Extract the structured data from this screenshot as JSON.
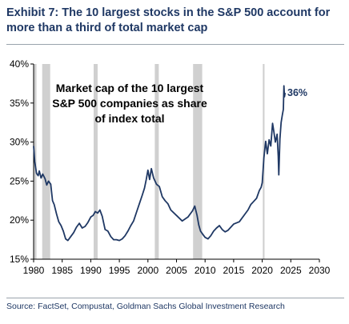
{
  "header": {
    "title": "Exhibit 7: The 10 largest stocks in the S&P 500 account for more than a third of total market cap"
  },
  "source": "Source: FactSet, Compustat, Goldman Sachs Global Investment Research",
  "chart_data": {
    "type": "line",
    "inner_title": [
      "Market cap of the 10 largest",
      "S&P 500 companies as share",
      "of index total"
    ],
    "end_label": "36%",
    "line_color": "#1f3864",
    "recession_color": "#d0d0d0",
    "xlim": [
      1980,
      2030
    ],
    "ylim": [
      15,
      40
    ],
    "x_ticks": [
      1980,
      1985,
      1990,
      1995,
      2000,
      2005,
      2010,
      2015,
      2020,
      2025,
      2030
    ],
    "y_ticks": [
      15,
      20,
      25,
      30,
      35,
      40
    ],
    "y_tick_labels": [
      "15%",
      "20%",
      "25%",
      "30%",
      "35%",
      "40%"
    ],
    "recessions": [
      [
        1980.0,
        1980.5
      ],
      [
        1981.5,
        1982.9
      ],
      [
        1990.5,
        1991.2
      ],
      [
        2001.2,
        2001.9
      ],
      [
        2007.9,
        2009.5
      ],
      [
        2020.1,
        2020.4
      ]
    ],
    "series": [
      {
        "x": [
          1980.0,
          1980.2,
          1980.5,
          1980.8,
          1981.0,
          1981.3,
          1981.6,
          1982.0,
          1982.3,
          1982.6,
          1983.0,
          1983.3,
          1983.6,
          1984.0,
          1984.4,
          1984.8,
          1985.2,
          1985.6,
          1986.0,
          1986.5,
          1987.0,
          1987.5,
          1988.0,
          1988.5,
          1989.0,
          1989.5,
          1990.0,
          1990.4,
          1990.8,
          1991.2,
          1991.6,
          1992.0,
          1992.5,
          1993.0,
          1993.5,
          1994.0,
          1994.5,
          1995.0,
          1995.5,
          1996.0,
          1996.5,
          1997.0,
          1997.5,
          1998.0,
          1998.5,
          1999.0,
          1999.4,
          1999.7,
          2000.0,
          2000.3,
          2000.6,
          2001.0,
          2001.5,
          2002.0,
          2002.5,
          2003.0,
          2003.5,
          2004.0,
          2005.0,
          2006.0,
          2007.0,
          2007.8,
          2008.2,
          2008.6,
          2008.9,
          2009.2,
          2009.6,
          2010.0,
          2010.5,
          2011.0,
          2011.5,
          2012.0,
          2012.5,
          2013.0,
          2013.5,
          2014.0,
          2015.0,
          2016.0,
          2017.0,
          2017.5,
          2018.0,
          2018.5,
          2019.0,
          2019.5,
          2019.8,
          2020.0,
          2020.3,
          2020.6,
          2020.9,
          2021.2,
          2021.5,
          2021.8,
          2022.0,
          2022.3,
          2022.6,
          2022.8,
          2022.9,
          2023.1,
          2023.3,
          2023.5,
          2023.7,
          2023.8,
          2023.9,
          2024.0
        ],
        "y": [
          29.5,
          27.5,
          26.0,
          25.7,
          26.3,
          25.4,
          25.9,
          25.3,
          24.5,
          25.0,
          24.6,
          22.5,
          22.0,
          20.8,
          19.8,
          19.3,
          18.6,
          17.6,
          17.4,
          17.9,
          18.4,
          19.1,
          19.6,
          19.0,
          19.2,
          19.7,
          20.4,
          20.6,
          21.1,
          20.9,
          21.3,
          20.5,
          18.8,
          18.6,
          17.9,
          17.5,
          17.5,
          17.4,
          17.6,
          18.0,
          18.6,
          19.3,
          19.9,
          21.0,
          22.1,
          23.2,
          24.1,
          25.2,
          26.4,
          25.2,
          26.6,
          25.4,
          24.6,
          24.3,
          23.0,
          22.5,
          22.1,
          21.3,
          20.6,
          19.9,
          20.4,
          21.2,
          21.8,
          20.6,
          19.4,
          18.6,
          18.2,
          17.8,
          17.6,
          18.0,
          18.6,
          19.0,
          19.3,
          18.8,
          18.5,
          18.7,
          19.5,
          19.8,
          20.8,
          21.3,
          22.0,
          22.4,
          22.8,
          23.8,
          24.2,
          24.8,
          28.0,
          30.1,
          28.5,
          30.3,
          29.5,
          32.4,
          31.5,
          30.0,
          31.0,
          28.2,
          25.8,
          30.4,
          32.5,
          33.4,
          34.2,
          37.2,
          35.8,
          36.3
        ]
      }
    ]
  }
}
